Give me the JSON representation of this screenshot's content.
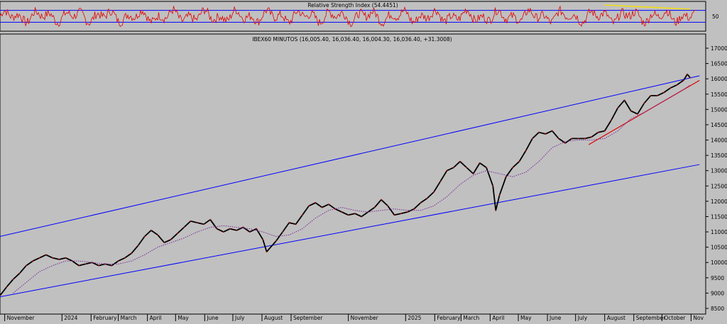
{
  "chart_data": [
    {
      "panel": "rsi",
      "type": "line",
      "title": "Relative Strength Index (54.4451)",
      "ylim": [
        0,
        100
      ],
      "levels": [
        30,
        70
      ],
      "y_tick_labels": [
        "50"
      ],
      "line_color": "#e00000",
      "level_color": "#0000ff",
      "divergence_line_color": "#f5e000",
      "divergence_line": [
        {
          "date": "2025-08-01",
          "value": 88
        },
        {
          "date": "2025-10-31",
          "value": 74
        }
      ]
    },
    {
      "panel": "price",
      "type": "line",
      "title": "IBEX60 MINUTOS (16,005.40, 16,036.40, 16,004.30, 16,036.40, +31.3008)",
      "ylim": [
        8500,
        17000
      ],
      "y_ticks": [
        8500,
        9000,
        9500,
        10000,
        10500,
        11000,
        11500,
        12000,
        12500,
        13000,
        13500,
        14000,
        14500,
        15000,
        15500,
        16000,
        16500,
        17000
      ],
      "y_tick_labels": [
        "8500",
        "9000",
        "9500",
        "10000",
        "10500",
        "11000",
        "11500",
        "12000",
        "12500",
        "13000",
        "13500",
        "14000",
        "14500",
        "15000",
        "15500",
        "16000",
        "16500",
        "17000"
      ],
      "x_tick_labels": [
        "November",
        "2024",
        "February",
        "March",
        "April",
        "May",
        "June",
        "July",
        "August",
        "September",
        "November",
        "2025",
        "February",
        "March",
        "April",
        "May",
        "June",
        "July",
        "August",
        "September",
        "October",
        "Nov"
      ],
      "x_tick_dates": [
        "2023-11-01",
        "2024-01-01",
        "2024-02-01",
        "2024-03-01",
        "2024-04-01",
        "2024-05-01",
        "2024-06-01",
        "2024-07-01",
        "2024-08-01",
        "2024-09-01",
        "2024-11-01",
        "2025-01-01",
        "2025-02-01",
        "2025-03-01",
        "2025-04-01",
        "2025-05-01",
        "2025-06-01",
        "2025-07-01",
        "2025-08-01",
        "2025-09-01",
        "2025-10-01",
        "2025-11-01"
      ],
      "series": [
        {
          "style": "price",
          "color": "#000000",
          "points": [
            [
              "2023-10-27",
              8920
            ],
            [
              "2023-11-03",
              9200
            ],
            [
              "2023-11-10",
              9450
            ],
            [
              "2023-11-17",
              9650
            ],
            [
              "2023-11-24",
              9900
            ],
            [
              "2023-12-01",
              10050
            ],
            [
              "2023-12-08",
              10150
            ],
            [
              "2023-12-15",
              10250
            ],
            [
              "2023-12-22",
              10150
            ],
            [
              "2023-12-29",
              10100
            ],
            [
              "2024-01-05",
              10150
            ],
            [
              "2024-01-12",
              10050
            ],
            [
              "2024-01-19",
              9900
            ],
            [
              "2024-01-26",
              9950
            ],
            [
              "2024-02-02",
              10000
            ],
            [
              "2024-02-09",
              9900
            ],
            [
              "2024-02-16",
              9950
            ],
            [
              "2024-02-23",
              9900
            ],
            [
              "2024-03-01",
              10050
            ],
            [
              "2024-03-08",
              10150
            ],
            [
              "2024-03-15",
              10300
            ],
            [
              "2024-03-22",
              10550
            ],
            [
              "2024-03-29",
              10850
            ],
            [
              "2024-04-05",
              11050
            ],
            [
              "2024-04-12",
              10900
            ],
            [
              "2024-04-19",
              10650
            ],
            [
              "2024-04-26",
              10750
            ],
            [
              "2024-05-03",
              10950
            ],
            [
              "2024-05-10",
              11150
            ],
            [
              "2024-05-17",
              11350
            ],
            [
              "2024-05-24",
              11300
            ],
            [
              "2024-05-31",
              11250
            ],
            [
              "2024-06-07",
              11400
            ],
            [
              "2024-06-14",
              11100
            ],
            [
              "2024-06-21",
              11000
            ],
            [
              "2024-06-28",
              11100
            ],
            [
              "2024-07-05",
              11050
            ],
            [
              "2024-07-12",
              11150
            ],
            [
              "2024-07-19",
              11000
            ],
            [
              "2024-07-26",
              11100
            ],
            [
              "2024-08-02",
              10750
            ],
            [
              "2024-08-06",
              10350
            ],
            [
              "2024-08-16",
              10700
            ],
            [
              "2024-08-23",
              11000
            ],
            [
              "2024-08-30",
              11300
            ],
            [
              "2024-09-06",
              11250
            ],
            [
              "2024-09-13",
              11550
            ],
            [
              "2024-09-20",
              11850
            ],
            [
              "2024-09-27",
              11950
            ],
            [
              "2024-10-04",
              11800
            ],
            [
              "2024-10-11",
              11900
            ],
            [
              "2024-10-18",
              11750
            ],
            [
              "2024-10-25",
              11650
            ],
            [
              "2024-11-01",
              11550
            ],
            [
              "2024-11-08",
              11600
            ],
            [
              "2024-11-15",
              11500
            ],
            [
              "2024-11-22",
              11650
            ],
            [
              "2024-11-29",
              11800
            ],
            [
              "2024-12-06",
              12050
            ],
            [
              "2024-12-13",
              11850
            ],
            [
              "2024-12-20",
              11550
            ],
            [
              "2024-12-27",
              11600
            ],
            [
              "2025-01-03",
              11650
            ],
            [
              "2025-01-10",
              11750
            ],
            [
              "2025-01-17",
              11950
            ],
            [
              "2025-01-24",
              12100
            ],
            [
              "2025-01-31",
              12300
            ],
            [
              "2025-02-07",
              12650
            ],
            [
              "2025-02-14",
              13000
            ],
            [
              "2025-02-21",
              13100
            ],
            [
              "2025-02-28",
              13300
            ],
            [
              "2025-03-07",
              13100
            ],
            [
              "2025-03-14",
              12900
            ],
            [
              "2025-03-21",
              13250
            ],
            [
              "2025-03-28",
              13100
            ],
            [
              "2025-04-04",
              12500
            ],
            [
              "2025-04-07",
              11700
            ],
            [
              "2025-04-11",
              12200
            ],
            [
              "2025-04-18",
              12800
            ],
            [
              "2025-04-25",
              13100
            ],
            [
              "2025-05-02",
              13300
            ],
            [
              "2025-05-09",
              13650
            ],
            [
              "2025-05-16",
              14050
            ],
            [
              "2025-05-23",
              14250
            ],
            [
              "2025-05-30",
              14200
            ],
            [
              "2025-06-06",
              14300
            ],
            [
              "2025-06-13",
              14050
            ],
            [
              "2025-06-20",
              13900
            ],
            [
              "2025-06-27",
              14050
            ],
            [
              "2025-07-04",
              14050
            ],
            [
              "2025-07-11",
              14050
            ],
            [
              "2025-07-18",
              14100
            ],
            [
              "2025-07-25",
              14250
            ],
            [
              "2025-08-01",
              14300
            ],
            [
              "2025-08-08",
              14650
            ],
            [
              "2025-08-15",
              15050
            ],
            [
              "2025-08-22",
              15300
            ],
            [
              "2025-08-29",
              14950
            ],
            [
              "2025-09-05",
              14850
            ],
            [
              "2025-09-12",
              15200
            ],
            [
              "2025-09-19",
              15450
            ],
            [
              "2025-09-26",
              15450
            ],
            [
              "2025-10-03",
              15550
            ],
            [
              "2025-10-10",
              15700
            ],
            [
              "2025-10-17",
              15800
            ],
            [
              "2025-10-24",
              15950
            ],
            [
              "2025-10-28",
              16150
            ],
            [
              "2025-10-31",
              16036
            ]
          ]
        },
        {
          "style": "moving-average",
          "color": "#7a2a9a",
          "points": [
            [
              "2023-11-10",
              9000
            ],
            [
              "2023-11-24",
              9350
            ],
            [
              "2023-12-08",
              9700
            ],
            [
              "2023-12-22",
              9900
            ],
            [
              "2024-01-05",
              10050
            ],
            [
              "2024-01-19",
              10050
            ],
            [
              "2024-02-02",
              10000
            ],
            [
              "2024-02-16",
              9950
            ],
            [
              "2024-03-01",
              9950
            ],
            [
              "2024-03-15",
              10050
            ],
            [
              "2024-03-29",
              10250
            ],
            [
              "2024-04-12",
              10500
            ],
            [
              "2024-04-26",
              10650
            ],
            [
              "2024-05-10",
              10800
            ],
            [
              "2024-05-24",
              11000
            ],
            [
              "2024-06-07",
              11150
            ],
            [
              "2024-06-21",
              11200
            ],
            [
              "2024-07-05",
              11150
            ],
            [
              "2024-07-19",
              11100
            ],
            [
              "2024-08-02",
              11000
            ],
            [
              "2024-08-16",
              10850
            ],
            [
              "2024-08-30",
              10900
            ],
            [
              "2024-09-13",
              11100
            ],
            [
              "2024-09-27",
              11450
            ],
            [
              "2024-10-11",
              11700
            ],
            [
              "2024-10-25",
              11800
            ],
            [
              "2024-11-08",
              11700
            ],
            [
              "2024-11-22",
              11650
            ],
            [
              "2024-12-06",
              11700
            ],
            [
              "2024-12-20",
              11750
            ],
            [
              "2025-01-03",
              11700
            ],
            [
              "2025-01-17",
              11700
            ],
            [
              "2025-01-31",
              11850
            ],
            [
              "2025-02-14",
              12150
            ],
            [
              "2025-02-28",
              12550
            ],
            [
              "2025-03-14",
              12850
            ],
            [
              "2025-03-28",
              13000
            ],
            [
              "2025-04-11",
              12900
            ],
            [
              "2025-04-25",
              12800
            ],
            [
              "2025-05-09",
              12950
            ],
            [
              "2025-05-23",
              13300
            ],
            [
              "2025-06-06",
              13750
            ],
            [
              "2025-06-20",
              13950
            ],
            [
              "2025-07-04",
              14000
            ],
            [
              "2025-07-18",
              14000
            ],
            [
              "2025-08-01",
              14050
            ],
            [
              "2025-08-15",
              14300
            ],
            [
              "2025-08-29",
              14700
            ],
            [
              "2025-09-12",
              14900
            ],
            [
              "2025-09-26",
              15150
            ],
            [
              "2025-10-10",
              15400
            ],
            [
              "2025-10-24",
              15650
            ],
            [
              "2025-10-31",
              15800
            ]
          ]
        }
      ],
      "trendlines": [
        {
          "color": "#0000ff",
          "from": [
            "2023-10-27",
            10850
          ],
          "to": [
            "2025-11-10",
            16100
          ]
        },
        {
          "color": "#0000ff",
          "from": [
            "2023-10-27",
            8880
          ],
          "to": [
            "2025-11-10",
            13200
          ]
        },
        {
          "color": "#e00000",
          "from": [
            "2025-07-15",
            13850
          ],
          "to": [
            "2025-11-10",
            15950
          ]
        }
      ]
    }
  ]
}
